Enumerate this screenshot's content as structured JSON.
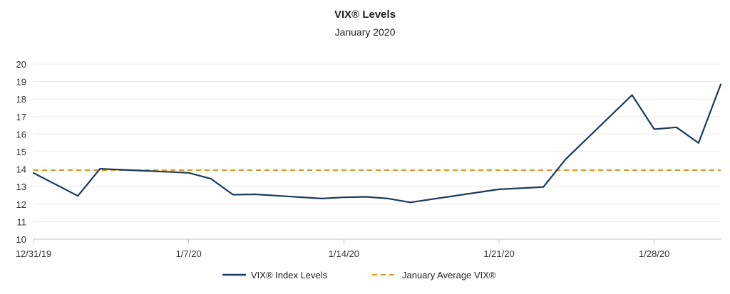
{
  "chart_data": {
    "type": "line",
    "title": "VIX® Levels",
    "subtitle": "January 2020",
    "xlabel": "",
    "ylabel": "",
    "ylim": [
      10,
      20
    ],
    "yticks": [
      10,
      11,
      12,
      13,
      14,
      15,
      16,
      17,
      18,
      19,
      20
    ],
    "x_tick_labels": [
      "12/31/19",
      "1/7/20",
      "1/14/20",
      "1/21/20",
      "1/28/20"
    ],
    "x_tick_dates": [
      "2019-12-31",
      "2020-01-07",
      "2020-01-14",
      "2020-01-21",
      "2020-01-28"
    ],
    "xlim": [
      "2019-12-31",
      "2020-01-31"
    ],
    "grid": true,
    "legend_position": "bottom",
    "series": [
      {
        "name": "VIX® Index Levels",
        "color": "#1b3a5c",
        "style": "solid",
        "x": [
          "2019-12-31",
          "2020-01-02",
          "2020-01-03",
          "2020-01-06",
          "2020-01-07",
          "2020-01-08",
          "2020-01-09",
          "2020-01-10",
          "2020-01-13",
          "2020-01-14",
          "2020-01-15",
          "2020-01-16",
          "2020-01-17",
          "2020-01-21",
          "2020-01-22",
          "2020-01-23",
          "2020-01-24",
          "2020-01-27",
          "2020-01-28",
          "2020-01-29",
          "2020-01-30",
          "2020-01-31"
        ],
        "values": [
          13.78,
          12.47,
          14.02,
          13.85,
          13.79,
          13.45,
          12.54,
          12.56,
          12.32,
          12.39,
          12.42,
          12.32,
          12.1,
          12.85,
          12.91,
          12.98,
          14.56,
          18.23,
          16.28,
          16.39,
          15.49,
          18.84
        ]
      },
      {
        "name": "January Average VIX®",
        "color": "#d39d1e",
        "style": "dashed",
        "x": [
          "2019-12-31",
          "2020-01-31"
        ],
        "values": [
          13.94,
          13.94
        ]
      }
    ]
  }
}
